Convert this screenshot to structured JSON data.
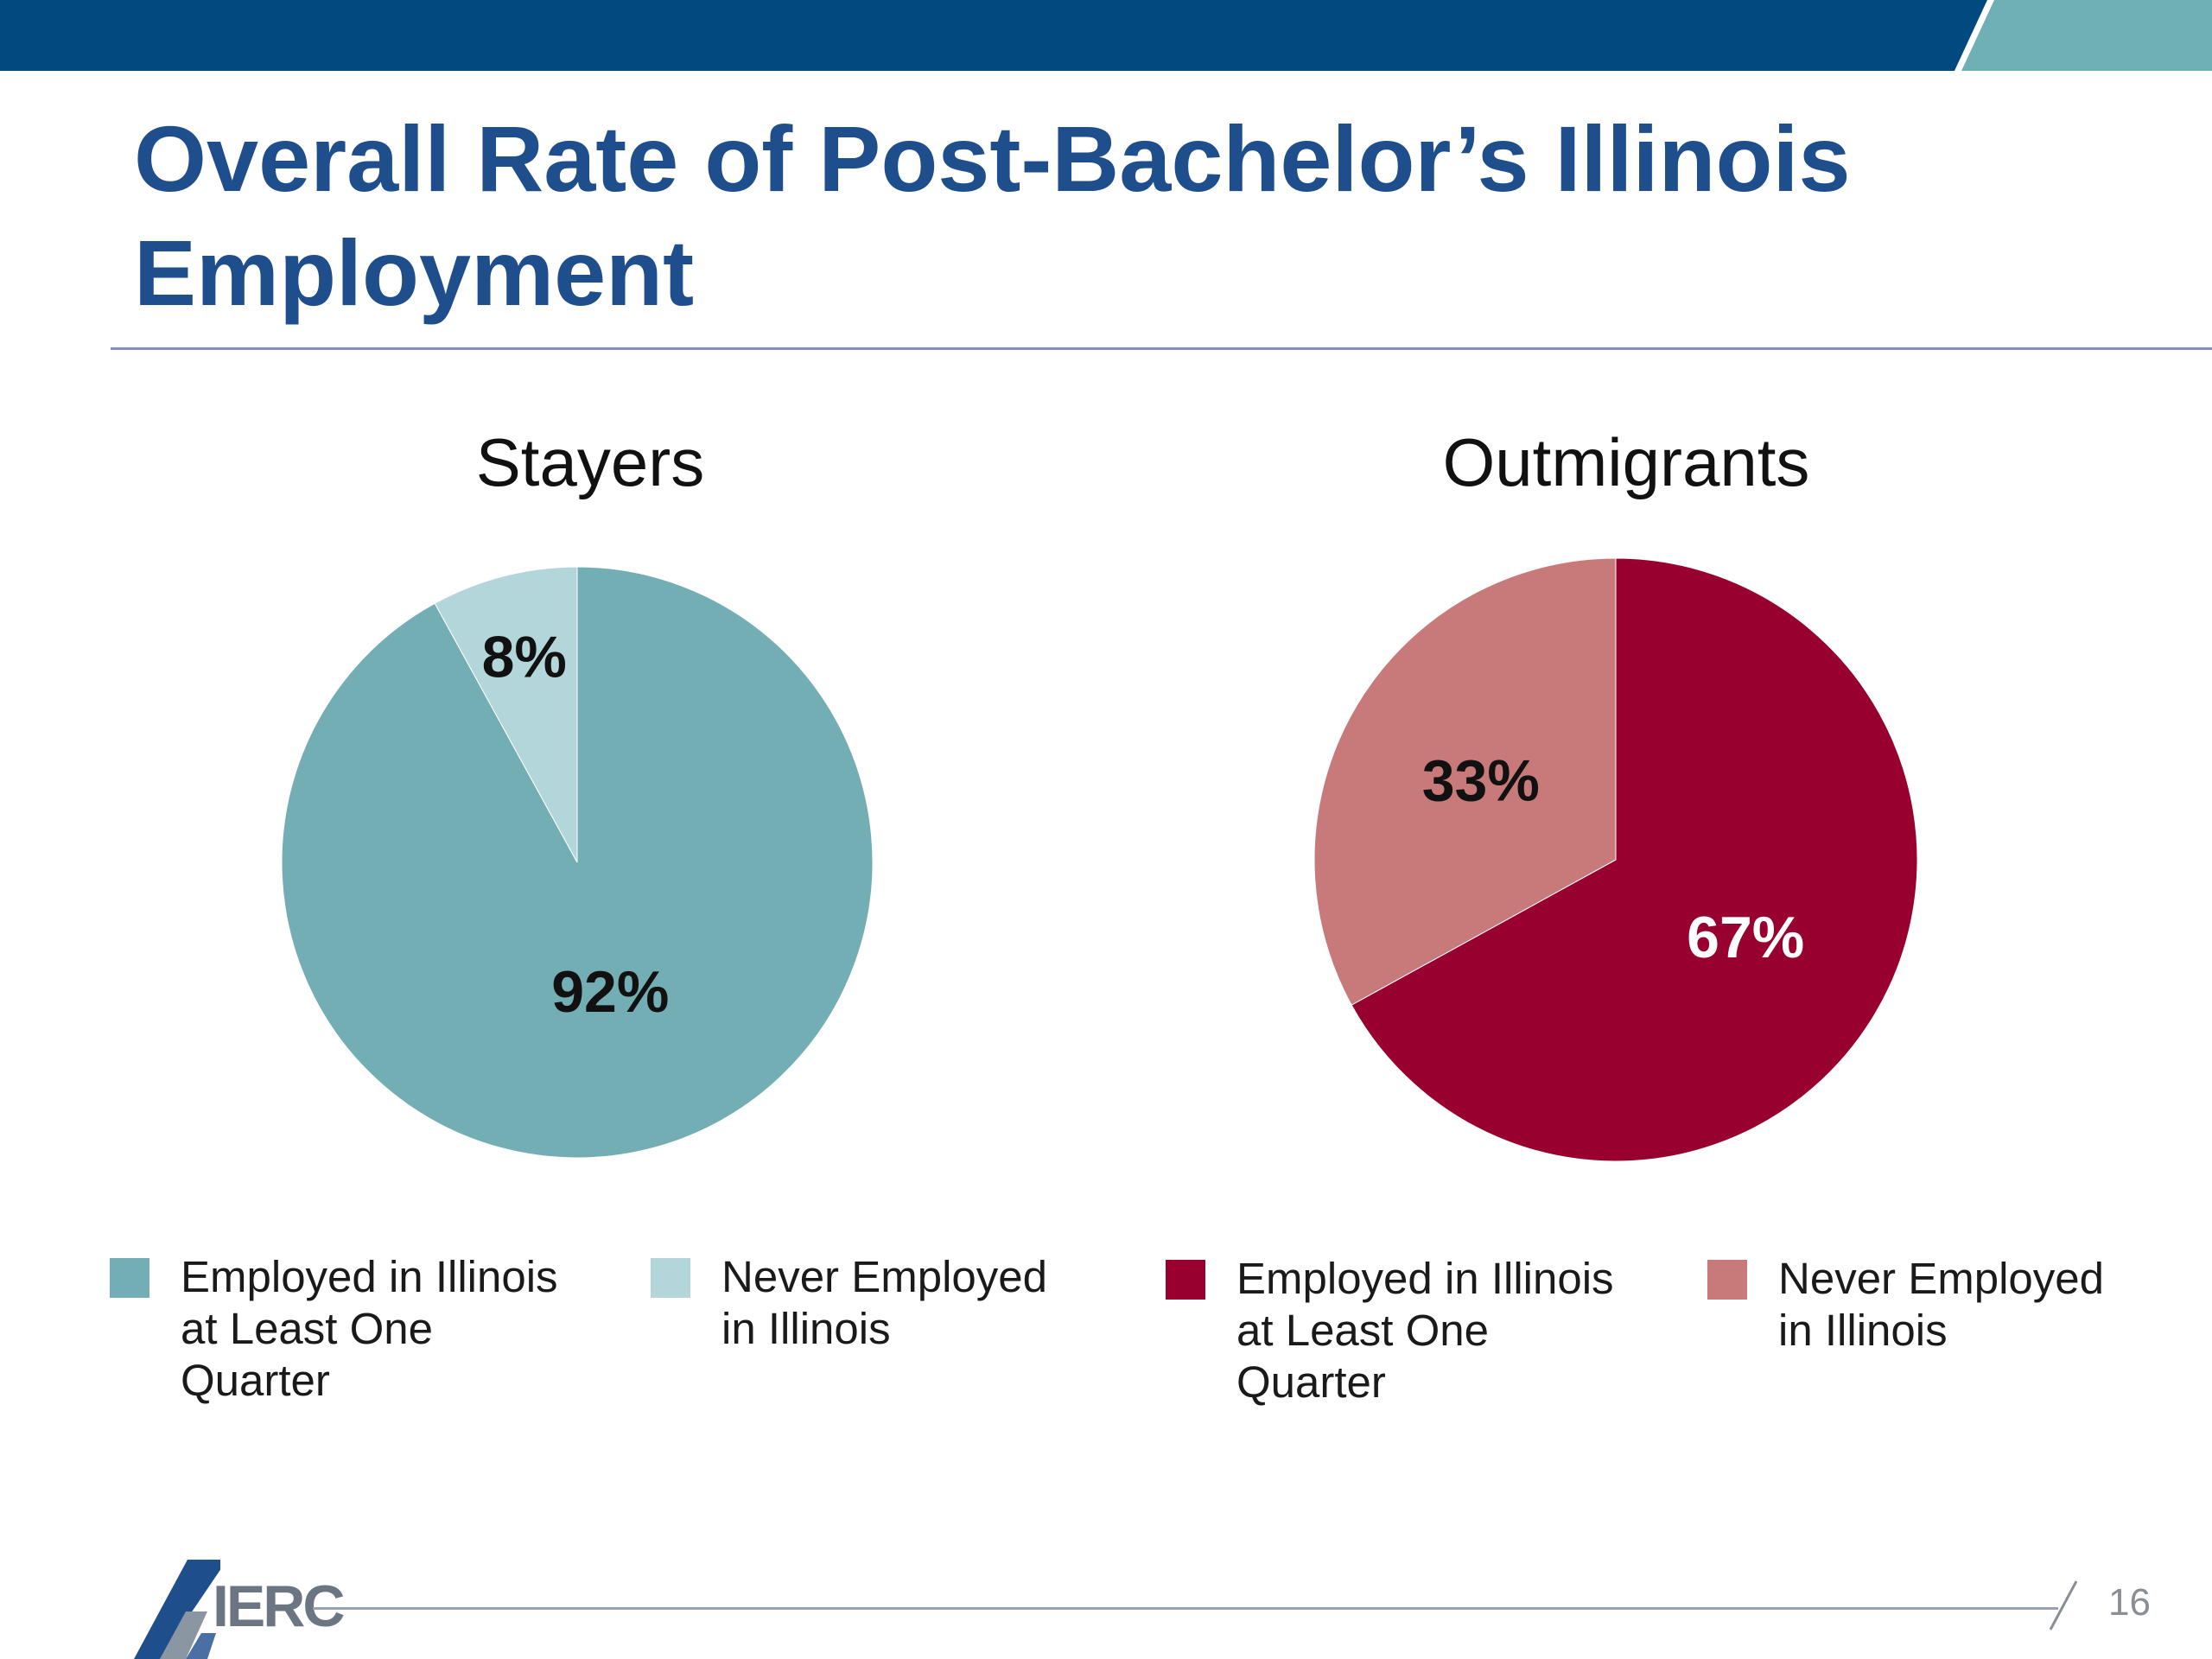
{
  "slide": {
    "title": "Overall Rate of Post-Bachelor’s Illinois Employment",
    "page_number": "16",
    "logo_text": "IERC"
  },
  "colors": {
    "header_blue": "#004a80",
    "header_teal": "#6fb0b5",
    "title_blue": "#1f4e8c",
    "teal": "#73aeb4",
    "light_teal": "#b2d6da",
    "maroon": "#980030",
    "rose": "#c87a7a"
  },
  "chart_data": [
    {
      "type": "pie",
      "title": "Stayers",
      "slices": [
        {
          "label": "Employed in Illinois at Least One Quarter",
          "value": 92,
          "value_label": "92%",
          "color": "#73aeb4"
        },
        {
          "label": "Never Employed in Illinois",
          "value": 8,
          "value_label": "8%",
          "color": "#b2d6da"
        }
      ],
      "legend": [
        {
          "lines": [
            "Employed in Illinois",
            "at Least One Quarter"
          ],
          "color": "#73aeb4"
        },
        {
          "lines": [
            "Never Employed",
            "in Illinois"
          ],
          "color": "#b2d6da"
        }
      ],
      "legend_position": "bottom"
    },
    {
      "type": "pie",
      "title": "Outmigrants",
      "slices": [
        {
          "label": "Employed in Illinois at Least One Quarter",
          "value": 67,
          "value_label": "67%",
          "color": "#980030"
        },
        {
          "label": "Never Employed in Illinois",
          "value": 33,
          "value_label": "33%",
          "color": "#c87a7a"
        }
      ],
      "legend": [
        {
          "lines": [
            "Employed in Illinois",
            "at Least One Quarter"
          ],
          "color": "#980030"
        },
        {
          "lines": [
            "Never Employed",
            "in Illinois"
          ],
          "color": "#c87a7a"
        }
      ],
      "legend_position": "bottom"
    }
  ]
}
